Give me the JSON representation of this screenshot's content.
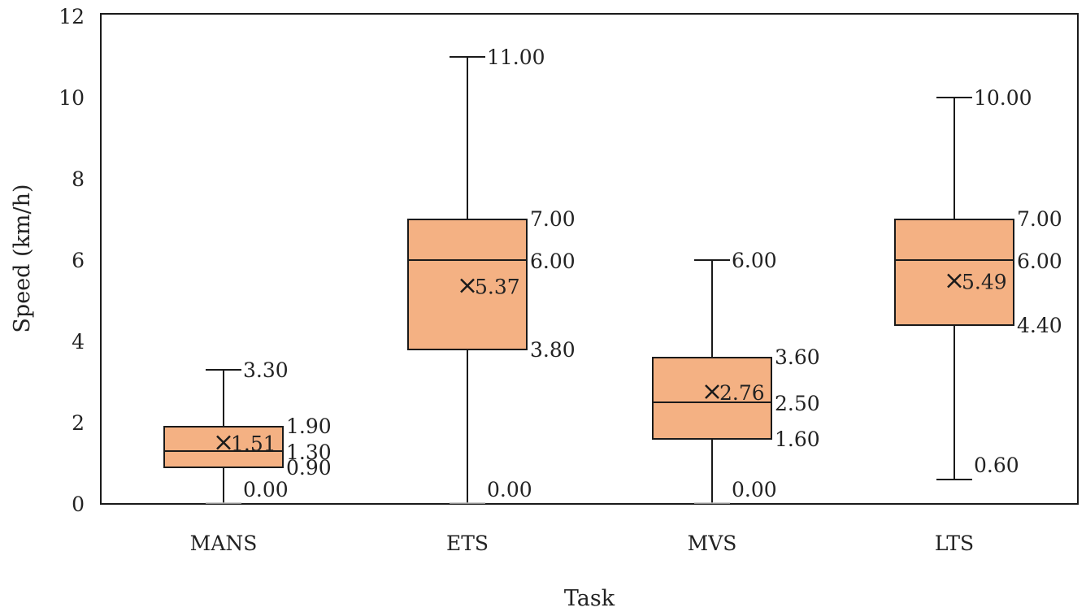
{
  "chart_data": {
    "type": "box",
    "xlabel": "Task",
    "ylabel": "Speed (km/h)",
    "ylim": [
      0,
      12
    ],
    "yticks": [
      0,
      2,
      4,
      6,
      8,
      10,
      12
    ],
    "grid": false,
    "legend": "none",
    "box_color": "#F4B183",
    "line_color": "#1a1a1a",
    "categories": [
      "MANS",
      "ETS",
      "MVS",
      "LTS"
    ],
    "boxes": [
      {
        "category": "MANS",
        "min": 0.0,
        "q1": 0.9,
        "median": 1.3,
        "q3": 1.9,
        "max": 3.3,
        "mean": 1.51,
        "labels": {
          "max": "3.30",
          "q3": "1.90",
          "median": "1.30",
          "q1": "0.90",
          "min": "0.00",
          "mean": "1.51"
        }
      },
      {
        "category": "ETS",
        "min": 0.0,
        "q1": 3.8,
        "median": 6.0,
        "q3": 7.0,
        "max": 11.0,
        "mean": 5.37,
        "labels": {
          "max": "11.00",
          "q3": "7.00",
          "median": "6.00",
          "q1": "3.80",
          "min": "0.00",
          "mean": "5.37"
        }
      },
      {
        "category": "MVS",
        "min": 0.0,
        "q1": 1.6,
        "median": 2.5,
        "q3": 3.6,
        "max": 6.0,
        "mean": 2.76,
        "labels": {
          "max": "6.00",
          "q3": "3.60",
          "median": "2.50",
          "q1": "1.60",
          "min": "0.00",
          "mean": "2.76"
        }
      },
      {
        "category": "LTS",
        "min": 0.6,
        "q1": 4.4,
        "median": 6.0,
        "q3": 7.0,
        "max": 10.0,
        "mean": 5.49,
        "labels": {
          "max": "10.00",
          "q3": "7.00",
          "median": "6.00",
          "q1": "4.40",
          "min": "0.60",
          "mean": "5.49"
        }
      }
    ]
  }
}
